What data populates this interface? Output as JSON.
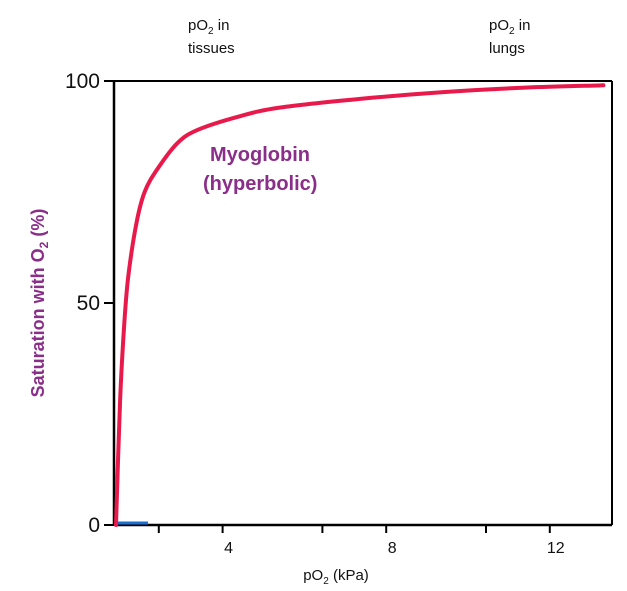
{
  "chart_data": {
    "type": "line",
    "xlabel": "pO2 (kPa)",
    "ylabel": "Saturation with O2 (%)",
    "xlim": [
      0,
      13
    ],
    "ylim": [
      0,
      100
    ],
    "x_ticks": [
      4,
      8,
      12
    ],
    "y_ticks": [
      0,
      50,
      100
    ],
    "top_labels": [
      {
        "line1": "pO2 in",
        "line2": "tissues",
        "x": 2.3
      },
      {
        "line1": "pO2 in",
        "line2": "lungs",
        "x": 10.7
      }
    ],
    "annotation": {
      "line1": "Myoglobin",
      "line2": "(hyperbolic)"
    },
    "series": [
      {
        "color": "#e8194b",
        "x": [
          0,
          0.1,
          0.2,
          0.3,
          0.5,
          0.7,
          1.0,
          1.5,
          2.0,
          3.0,
          4.0,
          6.0,
          8.0,
          10.0,
          12.0,
          13.0
        ],
        "y": [
          0,
          28,
          45,
          56,
          68,
          75,
          80,
          86,
          89,
          92,
          94,
          96,
          97.5,
          98.5,
          99,
          99
        ]
      }
    ],
    "grid": false,
    "colors": {
      "axis": "#000000",
      "annotation": "#8a2e8a",
      "curve": "#e8194b",
      "blue_mark": "#1a6fd0"
    }
  }
}
